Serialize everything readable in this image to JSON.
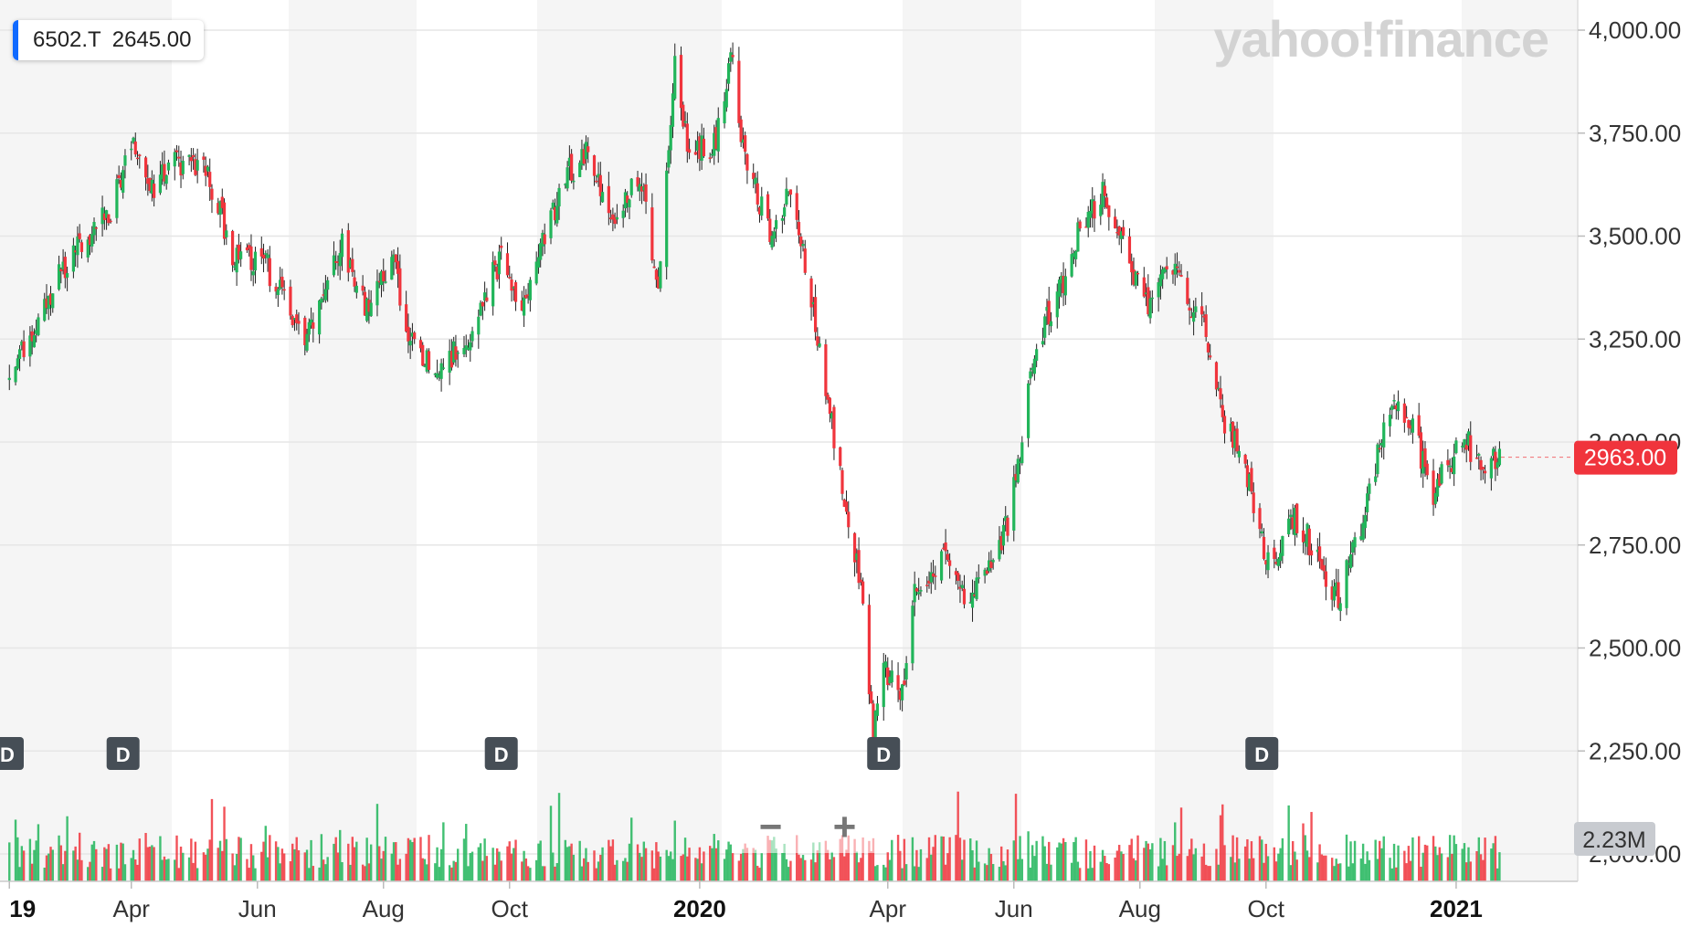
{
  "legend": {
    "symbol": "6502.T",
    "value": "2645.00",
    "accent": "#0f69ff"
  },
  "watermark": "yahoo!finance",
  "zoom": {
    "minus": "−",
    "plus": "+"
  },
  "badges": {
    "last_price": "2963.00",
    "last_volume": "2.23M"
  },
  "colors": {
    "up": "#21b55a",
    "down": "#f0343c",
    "grid": "#e6e6e6",
    "band": "#f5f5f5",
    "last_price_bg": "#f0343c",
    "volume_badge_bg": "#c8cbd0"
  },
  "chart_data": {
    "type": "candlestick",
    "symbol": "6502.T",
    "interval": "D",
    "y_axis": {
      "min": 2000,
      "max": 4000,
      "ticks": [
        4000,
        3750,
        3500,
        3250,
        3000,
        2750,
        2500,
        2250,
        2000
      ],
      "tick_labels": [
        "4,000.00",
        "3,750.00",
        "3,500.00",
        "3,250.00",
        "3,000.00",
        "2,750.00",
        "2,500.00",
        "2,250.00",
        "2,000.00"
      ]
    },
    "x_axis": {
      "start": "2019-01-31",
      "end": "2021-01-28",
      "ticks": [
        {
          "label": "19",
          "date": "2019-02-01",
          "major": true
        },
        {
          "label": "Apr",
          "date": "2019-04-01",
          "major": false
        },
        {
          "label": "Jun",
          "date": "2019-06-01",
          "major": false
        },
        {
          "label": "Aug",
          "date": "2019-08-01",
          "major": false
        },
        {
          "label": "Oct",
          "date": "2019-10-01",
          "major": false
        },
        {
          "label": "2020",
          "date": "2020-01-01",
          "major": true
        },
        {
          "label": "Apr",
          "date": "2020-04-01",
          "major": false
        },
        {
          "label": "Jun",
          "date": "2020-06-01",
          "major": false
        },
        {
          "label": "Aug",
          "date": "2020-08-01",
          "major": false
        },
        {
          "label": "Oct",
          "date": "2020-10-01",
          "major": false
        },
        {
          "label": "2021",
          "date": "2021-01-01",
          "major": true
        }
      ]
    },
    "dividend_markers": [
      {
        "label": "D",
        "date": "2019-01-31"
      },
      {
        "label": "D",
        "date": "2019-03-28"
      },
      {
        "label": "D",
        "date": "2019-09-27"
      },
      {
        "label": "D",
        "date": "2020-03-30"
      },
      {
        "label": "D",
        "date": "2020-09-29"
      }
    ],
    "price_path": [
      [
        "2019-02-01",
        3150
      ],
      [
        "2019-03-05",
        3480
      ],
      [
        "2019-03-22",
        3560
      ],
      [
        "2019-04-01",
        3740
      ],
      [
        "2019-04-10",
        3600
      ],
      [
        "2019-04-22",
        3680
      ],
      [
        "2019-05-08",
        3650
      ],
      [
        "2019-05-20",
        3450
      ],
      [
        "2019-06-05",
        3430
      ],
      [
        "2019-06-25",
        3250
      ],
      [
        "2019-07-12",
        3480
      ],
      [
        "2019-07-25",
        3300
      ],
      [
        "2019-08-05",
        3470
      ],
      [
        "2019-08-12",
        3250
      ],
      [
        "2019-08-27",
        3170
      ],
      [
        "2019-09-10",
        3250
      ],
      [
        "2019-09-27",
        3450
      ],
      [
        "2019-10-07",
        3320
      ],
      [
        "2019-10-28",
        3650
      ],
      [
        "2019-11-08",
        3700
      ],
      [
        "2019-11-20",
        3550
      ],
      [
        "2019-12-03",
        3650
      ],
      [
        "2019-12-12",
        3370
      ],
      [
        "2019-12-20",
        3930
      ],
      [
        "2019-12-27",
        3700
      ],
      [
        "2020-01-09",
        3720
      ],
      [
        "2020-01-16",
        3950
      ],
      [
        "2020-01-22",
        3720
      ],
      [
        "2020-02-05",
        3480
      ],
      [
        "2020-02-14",
        3620
      ],
      [
        "2020-02-27",
        3250
      ],
      [
        "2020-03-03",
        3100
      ],
      [
        "2020-03-10",
        2880
      ],
      [
        "2020-03-19",
        2650
      ],
      [
        "2020-03-25",
        2300
      ],
      [
        "2020-03-30",
        2450
      ],
      [
        "2020-04-08",
        2380
      ],
      [
        "2020-04-14",
        2650
      ],
      [
        "2020-04-27",
        2720
      ],
      [
        "2020-05-08",
        2620
      ],
      [
        "2020-05-20",
        2700
      ],
      [
        "2020-05-29",
        2800
      ],
      [
        "2020-06-03",
        2950
      ],
      [
        "2020-06-12",
        3250
      ],
      [
        "2020-06-22",
        3350
      ],
      [
        "2020-07-03",
        3520
      ],
      [
        "2020-07-14",
        3600
      ],
      [
        "2020-07-24",
        3470
      ],
      [
        "2020-08-05",
        3330
      ],
      [
        "2020-08-14",
        3450
      ],
      [
        "2020-08-21",
        3380
      ],
      [
        "2020-09-03",
        3250
      ],
      [
        "2020-09-10",
        3050
      ],
      [
        "2020-09-18",
        3000
      ],
      [
        "2020-09-25",
        2850
      ],
      [
        "2020-10-02",
        2700
      ],
      [
        "2020-10-15",
        2820
      ],
      [
        "2020-10-23",
        2750
      ],
      [
        "2020-11-05",
        2620
      ],
      [
        "2020-11-13",
        2750
      ],
      [
        "2020-11-20",
        2880
      ],
      [
        "2020-12-01",
        3100
      ],
      [
        "2020-12-10",
        3050
      ],
      [
        "2020-12-21",
        2870
      ],
      [
        "2020-12-28",
        2950
      ],
      [
        "2021-01-06",
        3000
      ],
      [
        "2021-01-13",
        2950
      ],
      [
        "2021-01-22",
        2963
      ]
    ],
    "last_price": 2963.0,
    "volume": {
      "latest_label": "2.23M"
    }
  }
}
